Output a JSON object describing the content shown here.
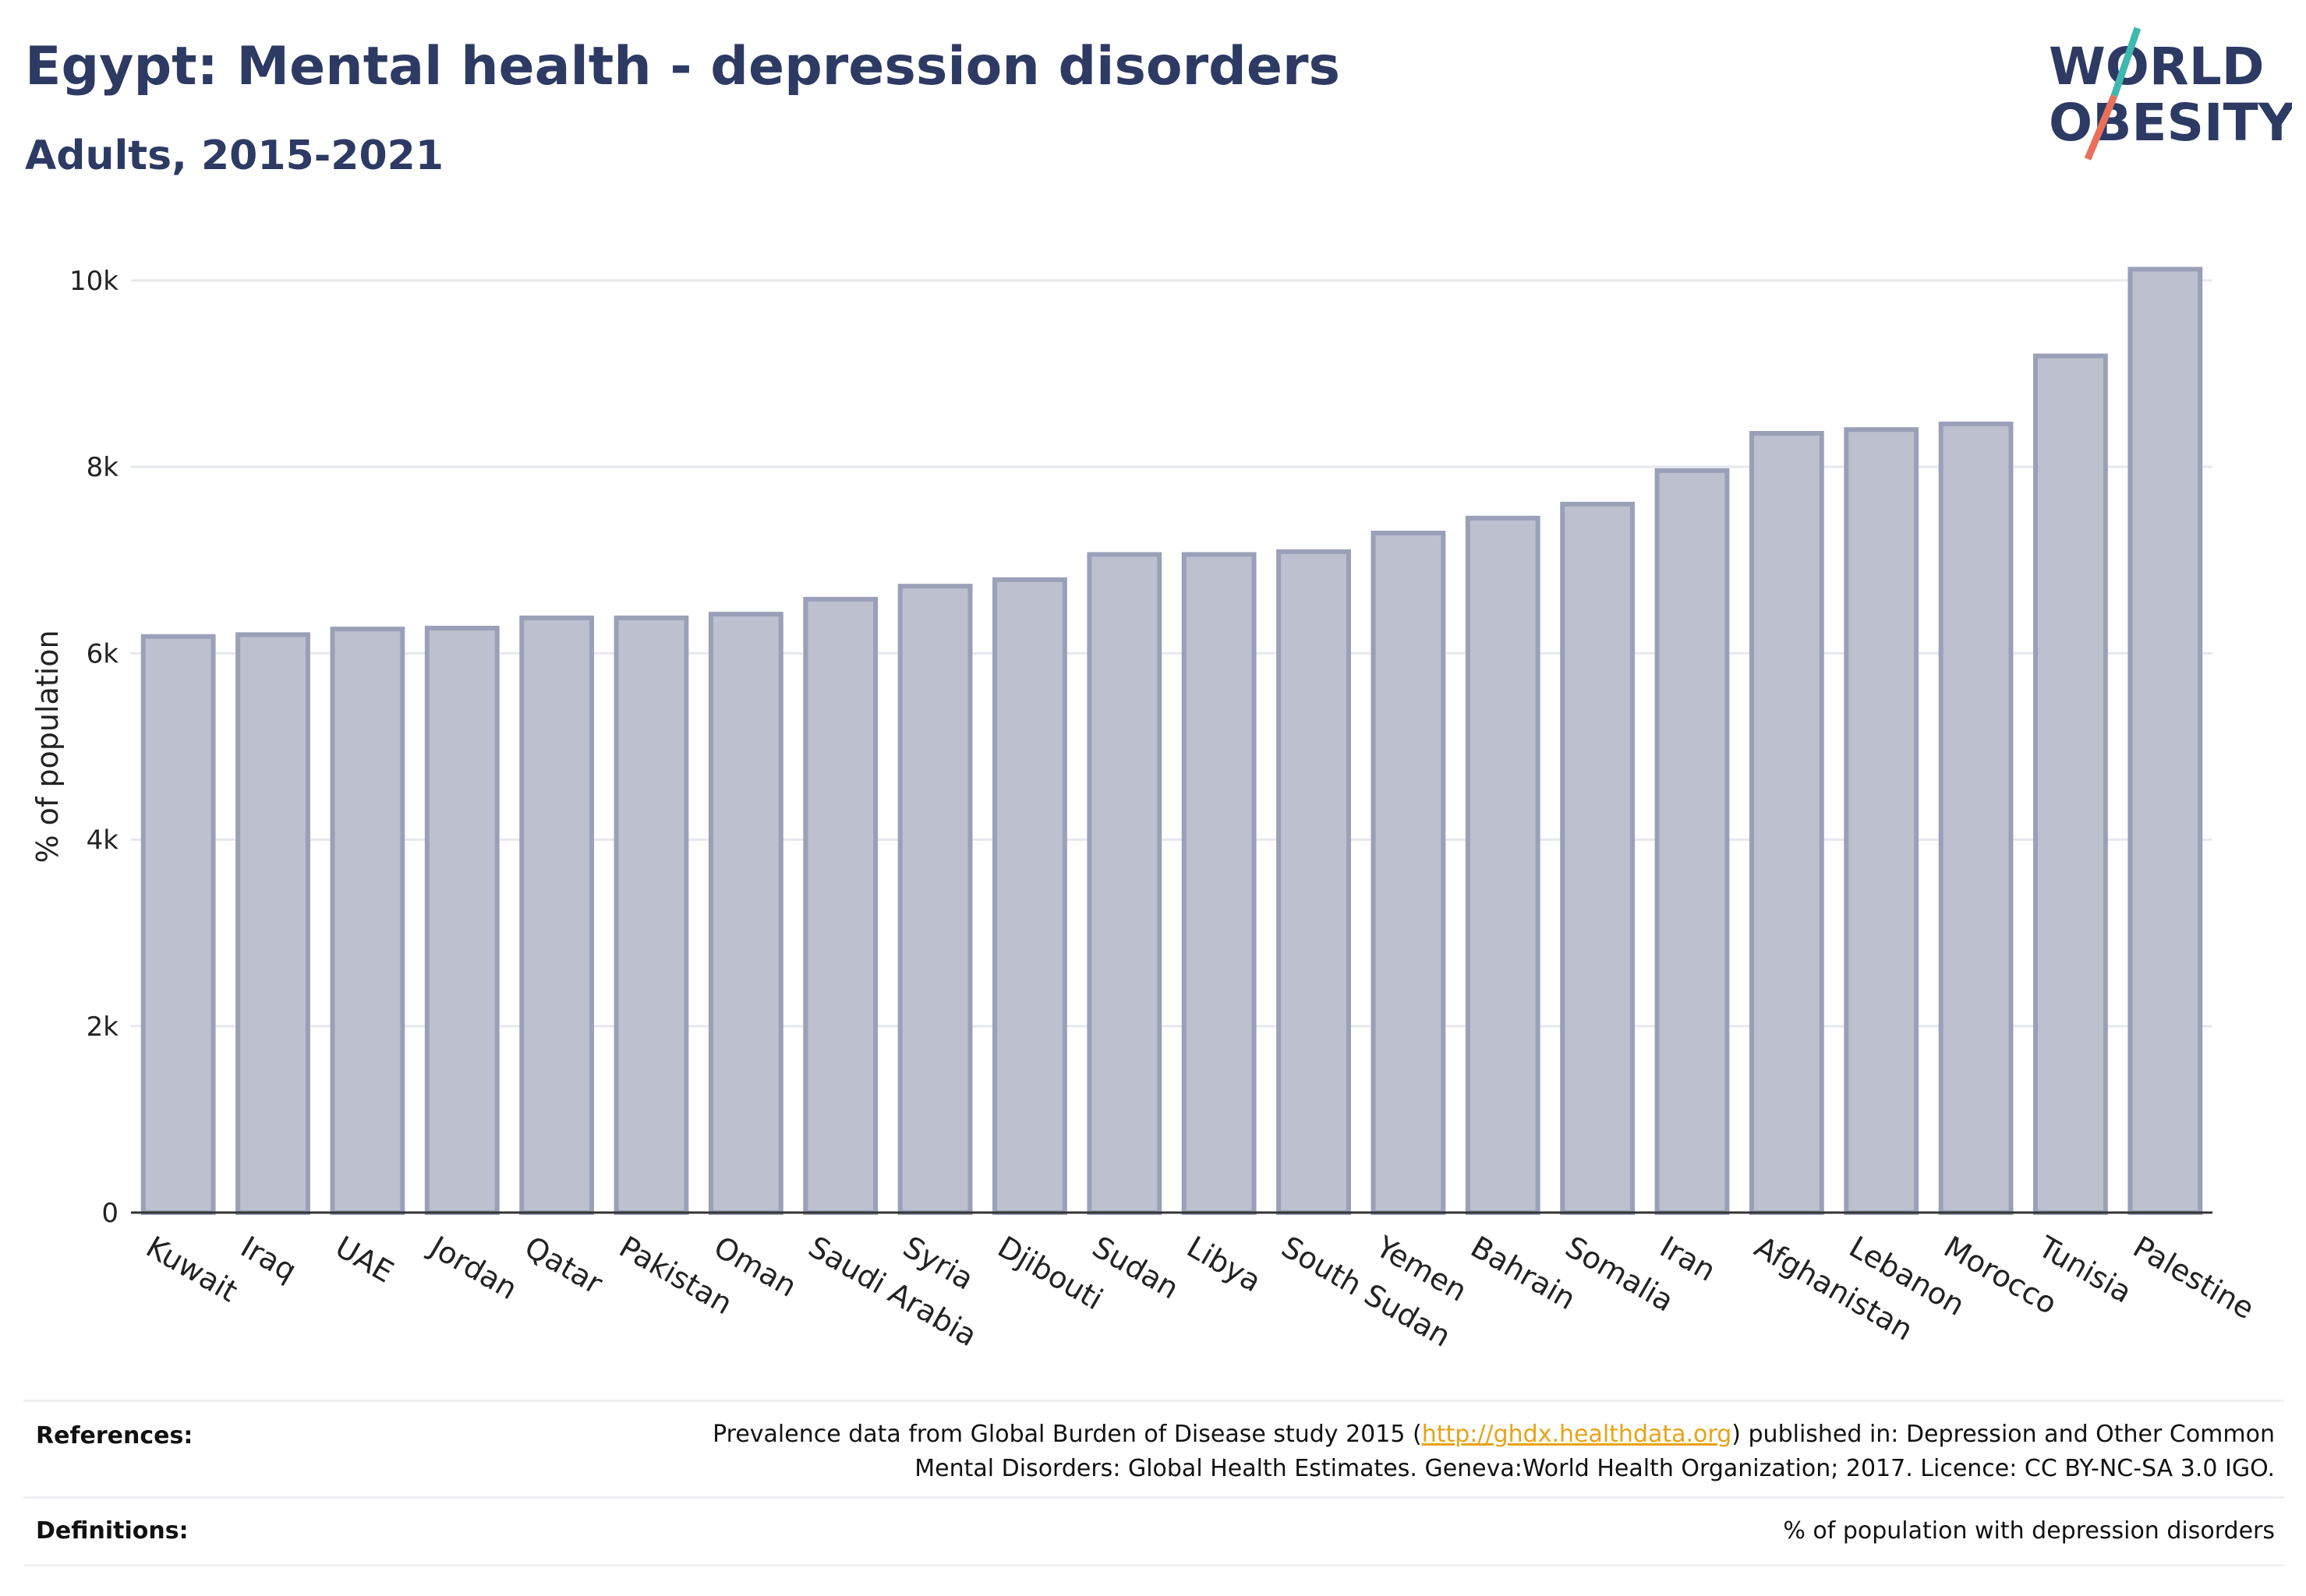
{
  "header": {
    "title": "Egypt: Mental health - depression disorders",
    "subtitle": "Adults, 2015-2021"
  },
  "logo": {
    "line1": "WORLD",
    "line2": "OBESITY",
    "text_color": "#2d3a63",
    "accent_teal": "#3fb8af",
    "accent_coral": "#e8705a"
  },
  "chart_data": {
    "type": "bar",
    "ylabel": "% of population",
    "xlabel": "",
    "ylim": [
      0,
      10500
    ],
    "yticks": [
      0,
      2000,
      4000,
      6000,
      8000,
      10000
    ],
    "ytick_labels": [
      "0",
      "2k",
      "4k",
      "6k",
      "8k",
      "10k"
    ],
    "categories": [
      "Kuwait",
      "Iraq",
      "UAE",
      "Jordan",
      "Qatar",
      "Pakistan",
      "Oman",
      "Saudi Arabia",
      "Syria",
      "Djibouti",
      "Sudan",
      "Libya",
      "South Sudan",
      "Yemen",
      "Bahrain",
      "Somalia",
      "Iran",
      "Afghanistan",
      "Lebanon",
      "Morocco",
      "Tunisia",
      "Palestine"
    ],
    "values": [
      6180,
      6200,
      6260,
      6270,
      6380,
      6380,
      6420,
      6580,
      6720,
      6790,
      7060,
      7060,
      7090,
      7290,
      7450,
      7600,
      7960,
      8360,
      8400,
      8460,
      9190,
      10120
    ],
    "bar_fill": "#bcc0cf",
    "bar_stroke": "#9aa0b8",
    "grid": true
  },
  "footer": {
    "references_label": "References:",
    "references_before_link": "Prevalence data from Global Burden of Disease study 2015 (",
    "references_link": "http://ghdx.healthdata.org",
    "references_after_link": ") published in: Depression and Other Common",
    "references_line2": "Mental Disorders: Global Health Estimates. Geneva:World Health Organization; 2017. Licence: CC BY-NC-SA 3.0 IGO.",
    "definitions_label": "Definitions:",
    "definitions_text": "% of population with depression disorders"
  }
}
